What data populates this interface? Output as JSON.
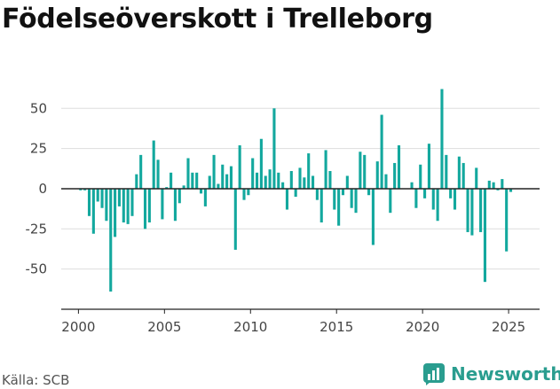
{
  "header": {
    "title": "Födelseöverskott i Trelleborg"
  },
  "footer": {
    "source": "Källa: SCB",
    "brand": "Newsworthy"
  },
  "colors": {
    "bar": "#13a89e",
    "grid": "#dddddd",
    "brand": "#2a9d8f"
  },
  "chart_data": {
    "type": "bar",
    "title": "Födelseöverskott i Trelleborg",
    "xlabel": "",
    "ylabel": "",
    "xlim": [
      1999.0,
      2026.8
    ],
    "ylim": [
      -75,
      70
    ],
    "y_ticks": [
      50,
      25,
      0,
      -25,
      -50
    ],
    "x_ticks": [
      2000,
      2005,
      2010,
      2015,
      2020,
      2025
    ],
    "grid": true,
    "bar_width_years": 0.16,
    "series": [
      {
        "x": [
          2000.125,
          2000.375,
          2000.625,
          2000.875,
          2001.125,
          2001.375,
          2001.625,
          2001.875,
          2002.125,
          2002.375,
          2002.625,
          2002.875,
          2003.125,
          2003.375,
          2003.625,
          2003.875,
          2004.125,
          2004.375,
          2004.625,
          2004.875,
          2005.125,
          2005.375,
          2005.625,
          2005.875,
          2006.125,
          2006.375,
          2006.625,
          2006.875,
          2007.125,
          2007.375,
          2007.625,
          2007.875,
          2008.125,
          2008.375,
          2008.625,
          2008.875,
          2009.125,
          2009.375,
          2009.625,
          2009.875,
          2010.125,
          2010.375,
          2010.625,
          2010.875,
          2011.125,
          2011.375,
          2011.625,
          2011.875,
          2012.125,
          2012.375,
          2012.625,
          2012.875,
          2013.125,
          2013.375,
          2013.625,
          2013.875,
          2014.125,
          2014.375,
          2014.625,
          2014.875,
          2015.125,
          2015.375,
          2015.625,
          2015.875,
          2016.125,
          2016.375,
          2016.625,
          2016.875,
          2017.125,
          2017.375,
          2017.625,
          2017.875,
          2018.125,
          2018.375,
          2018.625,
          2018.875,
          2019.125,
          2019.375,
          2019.625,
          2019.875,
          2020.125,
          2020.375,
          2020.625,
          2020.875,
          2021.125,
          2021.375,
          2021.625,
          2021.875,
          2022.125,
          2022.375,
          2022.625,
          2022.875,
          2023.125,
          2023.375,
          2023.625,
          2023.875,
          2024.125,
          2024.375,
          2024.625,
          2024.875,
          2025.125,
          2025.375
        ],
        "values": [
          -1,
          -1,
          -17,
          -28,
          -8,
          -12,
          -20,
          -64,
          -30,
          -11,
          -21,
          -22,
          -17,
          9,
          21,
          -25,
          -21,
          30,
          18,
          -19,
          1,
          10,
          -20,
          -9,
          2,
          19,
          10,
          10,
          -3,
          -11,
          8,
          21,
          3,
          15,
          9,
          14,
          -38,
          27,
          -7,
          -4,
          19,
          10,
          31,
          8,
          12,
          50,
          10,
          4,
          -13,
          11,
          -5,
          13,
          7,
          22,
          8,
          -7,
          -21,
          24,
          11,
          -13,
          -23,
          -4,
          8,
          -12,
          -15,
          23,
          21,
          -4,
          -35,
          17,
          46,
          9,
          -15,
          16,
          27,
          0,
          0,
          4,
          -12,
          15,
          -6,
          28,
          -13,
          -20,
          62,
          21,
          -6,
          -13,
          20,
          16,
          -27,
          -29,
          13,
          -27,
          -58,
          5,
          4,
          -1,
          6,
          -39,
          -2,
          0
        ]
      }
    ]
  }
}
